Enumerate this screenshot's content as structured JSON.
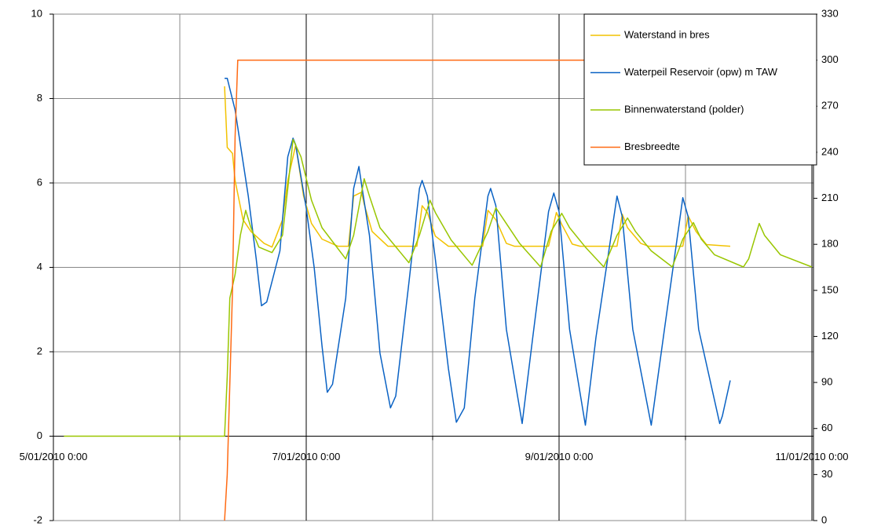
{
  "chart_data": {
    "type": "line",
    "xlim": [
      "2010-01-05T00:00",
      "2010-01-11T00:00"
    ],
    "xticks": [
      {
        "value": "2010-01-05T00:00",
        "label": "5/01/2010 0:00"
      },
      {
        "value": "2010-01-06T00:00",
        "label": null
      },
      {
        "value": "2010-01-07T00:00",
        "label": "7/01/2010 0:00"
      },
      {
        "value": "2010-01-08T00:00",
        "label": null
      },
      {
        "value": "2010-01-09T00:00",
        "label": "9/01/2010 0:00"
      },
      {
        "value": "2010-01-10T00:00",
        "label": null
      },
      {
        "value": "2010-01-11T00:00",
        "label": "11/01/2010 0:00"
      }
    ],
    "ylim": [
      -2,
      10
    ],
    "yticks": [
      -2,
      0,
      2,
      4,
      6,
      8,
      10
    ],
    "y2lim": [
      0,
      330
    ],
    "y2ticks": [
      0,
      30,
      60,
      90,
      120,
      150,
      180,
      210,
      240,
      270,
      300,
      330
    ],
    "grid": true,
    "legend": "top-right",
    "series": [
      {
        "name": "Waterstand in bres",
        "color": "#f2c200",
        "x": [
          "2010-01-06T08:30",
          "2010-01-06T09:00",
          "2010-01-06T10:00",
          "2010-01-06T10:30",
          "2010-01-06T12:00",
          "2010-01-06T13:30",
          "2010-01-06T16:00",
          "2010-01-06T17:30",
          "2010-01-06T19:30",
          "2010-01-06T20:30",
          "2010-01-06T22:00",
          "2010-01-06T23:30",
          "2010-01-07T01:00",
          "2010-01-07T03:00",
          "2010-01-07T06:00",
          "2010-01-07T08:00",
          "2010-01-07T09:00",
          "2010-01-07T10:30",
          "2010-01-07T11:00",
          "2010-01-07T12:30",
          "2010-01-07T15:30",
          "2010-01-07T21:00",
          "2010-01-07T22:00",
          "2010-01-07T23:00",
          "2010-01-08T00:30",
          "2010-01-08T03:00",
          "2010-01-08T09:30",
          "2010-01-08T10:30",
          "2010-01-08T12:00",
          "2010-01-08T14:00",
          "2010-01-08T15:30",
          "2010-01-08T22:00",
          "2010-01-08T23:30",
          "2010-01-09T00:30",
          "2010-01-09T02:30",
          "2010-01-09T04:00",
          "2010-01-09T11:00",
          "2010-01-09T12:00",
          "2010-01-09T13:00",
          "2010-01-09T15:30",
          "2010-01-09T17:00",
          "2010-01-09T23:30",
          "2010-01-10T00:30",
          "2010-01-10T02:00",
          "2010-01-10T04:00",
          "2010-01-10T08:30"
        ],
        "values": [
          8.29,
          6.84,
          6.7,
          6.06,
          5.13,
          4.85,
          4.57,
          4.48,
          5.13,
          6.06,
          6.9,
          5.69,
          5.04,
          4.67,
          4.5,
          4.5,
          5.69,
          5.78,
          5.5,
          4.85,
          4.5,
          4.5,
          5.46,
          5.3,
          4.74,
          4.5,
          4.5,
          5.35,
          5.13,
          4.57,
          4.5,
          4.5,
          5.3,
          5.02,
          4.55,
          4.5,
          4.5,
          5.26,
          4.94,
          4.57,
          4.5,
          4.5,
          5.22,
          4.85,
          4.54,
          4.5
        ]
      },
      {
        "name": "Waterpeil Reservoir (opw) m TAW",
        "color": "#0a62c4",
        "x": [
          "2010-01-06T08:30",
          "2010-01-06T09:00",
          "2010-01-06T10:30",
          "2010-01-06T13:00",
          "2010-01-06T14:30",
          "2010-01-06T15:30",
          "2010-01-06T16:30",
          "2010-01-06T19:00",
          "2010-01-06T20:30",
          "2010-01-06T21:30",
          "2010-01-06T22:00",
          "2010-01-07T00:00",
          "2010-01-07T01:30",
          "2010-01-07T03:00",
          "2010-01-07T04:00",
          "2010-01-07T05:00",
          "2010-01-07T07:30",
          "2010-01-07T09:00",
          "2010-01-07T10:00",
          "2010-01-07T10:30",
          "2010-01-07T12:00",
          "2010-01-07T14:00",
          "2010-01-07T16:00",
          "2010-01-07T17:00",
          "2010-01-07T19:30",
          "2010-01-07T21:30",
          "2010-01-07T22:00",
          "2010-01-07T23:00",
          "2010-01-08T00:30",
          "2010-01-08T03:00",
          "2010-01-08T04:30",
          "2010-01-08T06:00",
          "2010-01-08T08:00",
          "2010-01-08T10:30",
          "2010-01-08T11:00",
          "2010-01-08T12:00",
          "2010-01-08T14:00",
          "2010-01-08T17:00",
          "2010-01-08T19:00",
          "2010-01-08T22:00",
          "2010-01-08T23:00",
          "2010-01-09T00:00",
          "2010-01-09T02:00",
          "2010-01-09T05:00",
          "2010-01-09T07:00",
          "2010-01-09T11:00",
          "2010-01-09T12:00",
          "2010-01-09T14:00",
          "2010-01-09T17:30",
          "2010-01-09T20:00",
          "2010-01-09T23:30",
          "2010-01-10T00:30",
          "2010-01-10T02:30",
          "2010-01-10T06:30",
          "2010-01-10T07:00",
          "2010-01-10T08:30"
        ],
        "values": [
          8.48,
          8.48,
          7.73,
          5.69,
          4.2,
          3.09,
          3.18,
          4.39,
          6.62,
          7.06,
          6.9,
          5.4,
          4.0,
          2.14,
          1.04,
          1.23,
          3.27,
          5.87,
          6.39,
          5.97,
          4.76,
          1.97,
          0.67,
          0.95,
          3.64,
          5.87,
          6.06,
          5.69,
          4.2,
          1.6,
          0.33,
          0.67,
          3.27,
          5.69,
          5.87,
          5.46,
          2.53,
          0.3,
          2.34,
          5.32,
          5.76,
          5.32,
          2.53,
          0.26,
          2.34,
          5.69,
          5.2,
          2.53,
          0.26,
          2.53,
          5.65,
          5.2,
          2.53,
          0.3,
          0.48,
          1.32
        ]
      },
      {
        "name": "Binnenwaterstand (polder)",
        "color": "#99c600",
        "x": [
          "2010-01-05T02:00",
          "2010-01-06T08:30",
          "2010-01-06T09:00",
          "2010-01-06T09:30",
          "2010-01-06T10:30",
          "2010-01-06T11:30",
          "2010-01-06T12:30",
          "2010-01-06T13:30",
          "2010-01-06T15:00",
          "2010-01-06T17:30",
          "2010-01-06T19:30",
          "2010-01-06T20:30",
          "2010-01-06T21:30",
          "2010-01-06T23:00",
          "2010-01-07T01:00",
          "2010-01-07T03:00",
          "2010-01-07T07:30",
          "2010-01-07T09:00",
          "2010-01-07T11:00",
          "2010-01-07T12:00",
          "2010-01-07T14:00",
          "2010-01-07T19:30",
          "2010-01-07T21:30",
          "2010-01-07T23:30",
          "2010-01-08T00:30",
          "2010-01-08T03:30",
          "2010-01-08T07:30",
          "2010-01-08T10:30",
          "2010-01-08T12:00",
          "2010-01-08T13:30",
          "2010-01-08T16:30",
          "2010-01-08T20:30",
          "2010-01-08T22:30",
          "2010-01-09T00:30",
          "2010-01-09T02:00",
          "2010-01-09T05:00",
          "2010-01-09T08:30",
          "2010-01-09T11:00",
          "2010-01-09T13:00",
          "2010-01-09T14:30",
          "2010-01-09T17:30",
          "2010-01-09T21:30",
          "2010-01-09T23:30",
          "2010-01-10T01:30",
          "2010-01-10T03:00",
          "2010-01-10T05:30",
          "2010-01-10T11:00",
          "2010-01-10T12:00",
          "2010-01-10T14:00",
          "2010-01-10T15:00",
          "2010-01-10T18:00",
          "2010-01-11T00:00"
        ],
        "values": [
          0,
          0,
          1.41,
          3.27,
          3.83,
          4.76,
          5.35,
          4.94,
          4.48,
          4.35,
          4.76,
          5.87,
          7.03,
          6.62,
          5.59,
          4.94,
          4.2,
          4.76,
          6.1,
          5.69,
          4.94,
          4.11,
          4.76,
          5.59,
          5.3,
          4.65,
          4.05,
          4.85,
          5.41,
          5.13,
          4.57,
          4.01,
          4.85,
          5.28,
          4.94,
          4.48,
          4.01,
          4.76,
          5.17,
          4.85,
          4.39,
          4.01,
          4.67,
          5.06,
          4.67,
          4.3,
          4.01,
          4.2,
          5.04,
          4.76,
          4.3,
          4.01
        ]
      },
      {
        "name": "Bresbreedte",
        "color": "#ff6a13",
        "axis": "y2",
        "x": [
          "2010-01-06T08:30",
          "2010-01-06T09:00",
          "2010-01-06T10:00",
          "2010-01-06T10:30",
          "2010-01-06T11:00",
          "2010-01-10T08:30"
        ],
        "values": [
          0,
          30,
          150,
          250,
          300,
          300
        ]
      }
    ]
  }
}
